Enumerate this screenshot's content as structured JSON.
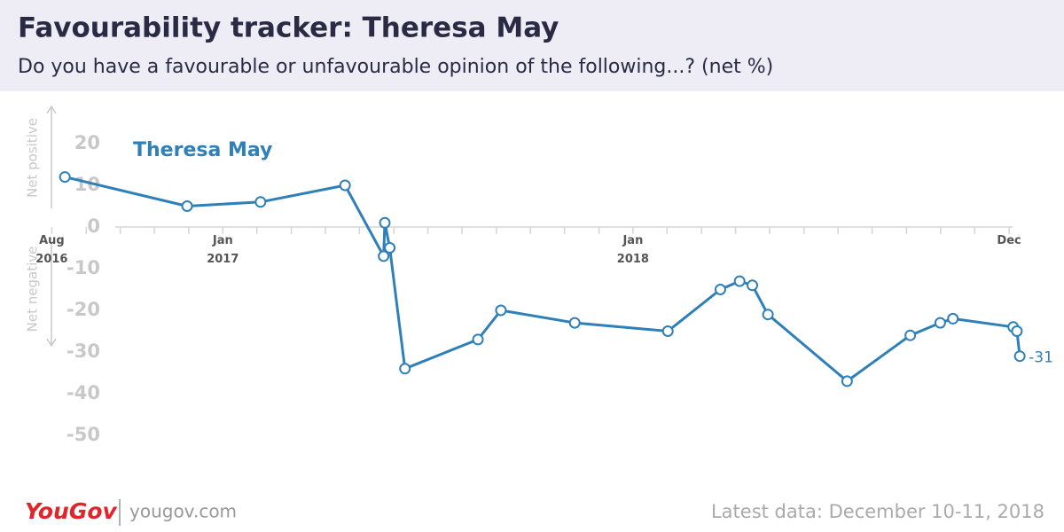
{
  "chart_data": {
    "type": "line",
    "title": "Favourability tracker: Theresa May",
    "subtitle": "Do you have a favourable or unfavourable opinion of the following...? (net %)",
    "y_annotations": [
      "Net positive",
      "Net negative"
    ],
    "footer": {
      "brand": "YouGov",
      "url": "yougov.com",
      "note": "Latest data: December 10-11, 2018"
    },
    "x": [
      2016.615,
      2016.913,
      2017.092,
      2017.298,
      2017.392,
      2017.395,
      2017.407,
      2017.444,
      2017.622,
      2017.678,
      2017.858,
      2018.085,
      2018.213,
      2018.26,
      2018.291,
      2018.329,
      2018.522,
      2018.676,
      2018.749,
      2018.78,
      2018.927,
      2018.936,
      2018.943
    ],
    "series": [
      {
        "name": "Theresa May",
        "color": "#2f80b8",
        "values": [
          12,
          5,
          6,
          10,
          -7,
          1,
          -5,
          -34,
          -27,
          -20,
          -23,
          -25,
          -15,
          -13,
          -14,
          -21,
          -37,
          -26,
          -23,
          -22,
          -24,
          -25,
          -31
        ],
        "value_labels": [
          null,
          null,
          null,
          null,
          null,
          null,
          null,
          null,
          null,
          null,
          null,
          null,
          null,
          null,
          null,
          null,
          null,
          null,
          null,
          null,
          null,
          null,
          "-31"
        ]
      }
    ],
    "xlim": [
      2016.5,
      2018.96
    ],
    "xticks": [
      {
        "value": 2016.583,
        "label": "Aug 2016"
      },
      {
        "value": 2016.667,
        "label": null
      },
      {
        "value": 2016.75,
        "label": null
      },
      {
        "value": 2016.833,
        "label": null
      },
      {
        "value": 2016.917,
        "label": null
      },
      {
        "value": 2017,
        "label": "Jan 2017"
      },
      {
        "value": 2017.083,
        "label": null
      },
      {
        "value": 2017.167,
        "label": null
      },
      {
        "value": 2017.25,
        "label": null
      },
      {
        "value": 2017.333,
        "label": null
      },
      {
        "value": 2017.417,
        "label": null
      },
      {
        "value": 2017.5,
        "label": null
      },
      {
        "value": 2017.583,
        "label": null
      },
      {
        "value": 2017.667,
        "label": null
      },
      {
        "value": 2017.75,
        "label": null
      },
      {
        "value": 2017.833,
        "label": null
      },
      {
        "value": 2017.917,
        "label": null
      },
      {
        "value": 2018,
        "label": "Jan 2018"
      },
      {
        "value": 2018.083,
        "label": null
      },
      {
        "value": 2018.167,
        "label": null
      },
      {
        "value": 2018.25,
        "label": null
      },
      {
        "value": 2018.333,
        "label": null
      },
      {
        "value": 2018.417,
        "label": null
      },
      {
        "value": 2018.5,
        "label": null
      },
      {
        "value": 2018.583,
        "label": null
      },
      {
        "value": 2018.667,
        "label": null
      },
      {
        "value": 2018.75,
        "label": null
      },
      {
        "value": 2018.833,
        "label": null
      },
      {
        "value": 2018.917,
        "label": "Dec"
      }
    ],
    "ylim": [
      -50,
      20
    ],
    "yticks": [
      -50,
      -40,
      -30,
      -20,
      -10,
      0,
      10,
      20
    ]
  }
}
